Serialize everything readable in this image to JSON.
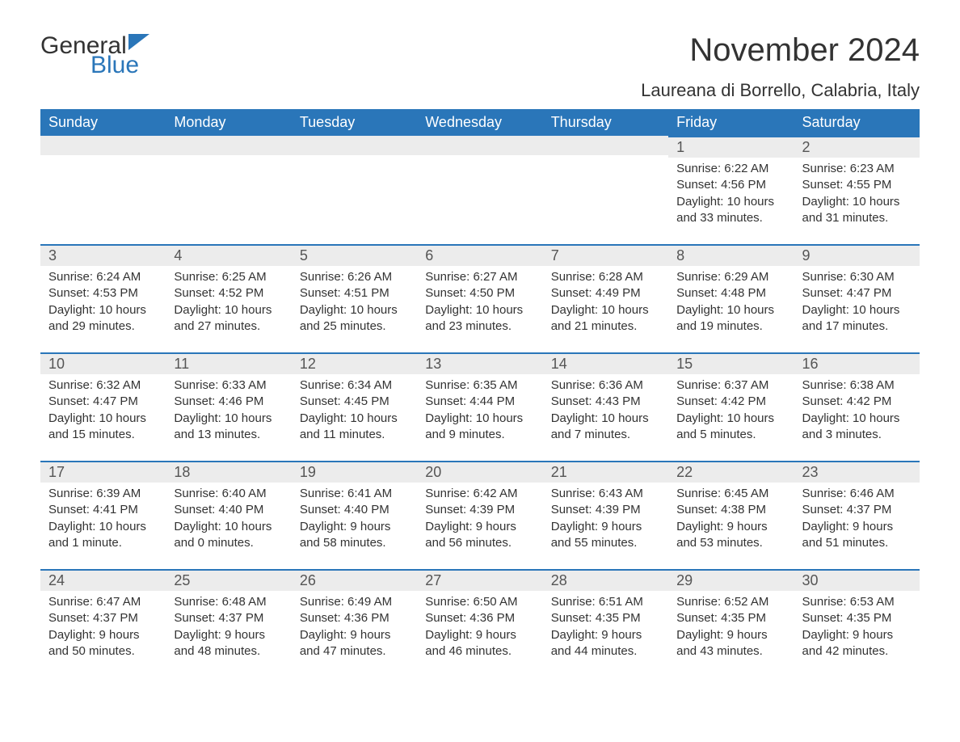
{
  "logo": {
    "text1": "General",
    "text2": "Blue"
  },
  "title": "November 2024",
  "location": "Laureana di Borrello, Calabria, Italy",
  "colors": {
    "header_bg": "#2a76b9",
    "header_text": "#ffffff",
    "daynum_bg": "#ececec",
    "daynum_border": "#2a76b9",
    "body_text": "#333333",
    "logo_blue": "#2a76b9"
  },
  "weekdays": [
    "Sunday",
    "Monday",
    "Tuesday",
    "Wednesday",
    "Thursday",
    "Friday",
    "Saturday"
  ],
  "weeks": [
    [
      null,
      null,
      null,
      null,
      null,
      {
        "n": "1",
        "sr": "Sunrise: 6:22 AM",
        "ss": "Sunset: 4:56 PM",
        "dl1": "Daylight: 10 hours",
        "dl2": "and 33 minutes."
      },
      {
        "n": "2",
        "sr": "Sunrise: 6:23 AM",
        "ss": "Sunset: 4:55 PM",
        "dl1": "Daylight: 10 hours",
        "dl2": "and 31 minutes."
      }
    ],
    [
      {
        "n": "3",
        "sr": "Sunrise: 6:24 AM",
        "ss": "Sunset: 4:53 PM",
        "dl1": "Daylight: 10 hours",
        "dl2": "and 29 minutes."
      },
      {
        "n": "4",
        "sr": "Sunrise: 6:25 AM",
        "ss": "Sunset: 4:52 PM",
        "dl1": "Daylight: 10 hours",
        "dl2": "and 27 minutes."
      },
      {
        "n": "5",
        "sr": "Sunrise: 6:26 AM",
        "ss": "Sunset: 4:51 PM",
        "dl1": "Daylight: 10 hours",
        "dl2": "and 25 minutes."
      },
      {
        "n": "6",
        "sr": "Sunrise: 6:27 AM",
        "ss": "Sunset: 4:50 PM",
        "dl1": "Daylight: 10 hours",
        "dl2": "and 23 minutes."
      },
      {
        "n": "7",
        "sr": "Sunrise: 6:28 AM",
        "ss": "Sunset: 4:49 PM",
        "dl1": "Daylight: 10 hours",
        "dl2": "and 21 minutes."
      },
      {
        "n": "8",
        "sr": "Sunrise: 6:29 AM",
        "ss": "Sunset: 4:48 PM",
        "dl1": "Daylight: 10 hours",
        "dl2": "and 19 minutes."
      },
      {
        "n": "9",
        "sr": "Sunrise: 6:30 AM",
        "ss": "Sunset: 4:47 PM",
        "dl1": "Daylight: 10 hours",
        "dl2": "and 17 minutes."
      }
    ],
    [
      {
        "n": "10",
        "sr": "Sunrise: 6:32 AM",
        "ss": "Sunset: 4:47 PM",
        "dl1": "Daylight: 10 hours",
        "dl2": "and 15 minutes."
      },
      {
        "n": "11",
        "sr": "Sunrise: 6:33 AM",
        "ss": "Sunset: 4:46 PM",
        "dl1": "Daylight: 10 hours",
        "dl2": "and 13 minutes."
      },
      {
        "n": "12",
        "sr": "Sunrise: 6:34 AM",
        "ss": "Sunset: 4:45 PM",
        "dl1": "Daylight: 10 hours",
        "dl2": "and 11 minutes."
      },
      {
        "n": "13",
        "sr": "Sunrise: 6:35 AM",
        "ss": "Sunset: 4:44 PM",
        "dl1": "Daylight: 10 hours",
        "dl2": "and 9 minutes."
      },
      {
        "n": "14",
        "sr": "Sunrise: 6:36 AM",
        "ss": "Sunset: 4:43 PM",
        "dl1": "Daylight: 10 hours",
        "dl2": "and 7 minutes."
      },
      {
        "n": "15",
        "sr": "Sunrise: 6:37 AM",
        "ss": "Sunset: 4:42 PM",
        "dl1": "Daylight: 10 hours",
        "dl2": "and 5 minutes."
      },
      {
        "n": "16",
        "sr": "Sunrise: 6:38 AM",
        "ss": "Sunset: 4:42 PM",
        "dl1": "Daylight: 10 hours",
        "dl2": "and 3 minutes."
      }
    ],
    [
      {
        "n": "17",
        "sr": "Sunrise: 6:39 AM",
        "ss": "Sunset: 4:41 PM",
        "dl1": "Daylight: 10 hours",
        "dl2": "and 1 minute."
      },
      {
        "n": "18",
        "sr": "Sunrise: 6:40 AM",
        "ss": "Sunset: 4:40 PM",
        "dl1": "Daylight: 10 hours",
        "dl2": "and 0 minutes."
      },
      {
        "n": "19",
        "sr": "Sunrise: 6:41 AM",
        "ss": "Sunset: 4:40 PM",
        "dl1": "Daylight: 9 hours",
        "dl2": "and 58 minutes."
      },
      {
        "n": "20",
        "sr": "Sunrise: 6:42 AM",
        "ss": "Sunset: 4:39 PM",
        "dl1": "Daylight: 9 hours",
        "dl2": "and 56 minutes."
      },
      {
        "n": "21",
        "sr": "Sunrise: 6:43 AM",
        "ss": "Sunset: 4:39 PM",
        "dl1": "Daylight: 9 hours",
        "dl2": "and 55 minutes."
      },
      {
        "n": "22",
        "sr": "Sunrise: 6:45 AM",
        "ss": "Sunset: 4:38 PM",
        "dl1": "Daylight: 9 hours",
        "dl2": "and 53 minutes."
      },
      {
        "n": "23",
        "sr": "Sunrise: 6:46 AM",
        "ss": "Sunset: 4:37 PM",
        "dl1": "Daylight: 9 hours",
        "dl2": "and 51 minutes."
      }
    ],
    [
      {
        "n": "24",
        "sr": "Sunrise: 6:47 AM",
        "ss": "Sunset: 4:37 PM",
        "dl1": "Daylight: 9 hours",
        "dl2": "and 50 minutes."
      },
      {
        "n": "25",
        "sr": "Sunrise: 6:48 AM",
        "ss": "Sunset: 4:37 PM",
        "dl1": "Daylight: 9 hours",
        "dl2": "and 48 minutes."
      },
      {
        "n": "26",
        "sr": "Sunrise: 6:49 AM",
        "ss": "Sunset: 4:36 PM",
        "dl1": "Daylight: 9 hours",
        "dl2": "and 47 minutes."
      },
      {
        "n": "27",
        "sr": "Sunrise: 6:50 AM",
        "ss": "Sunset: 4:36 PM",
        "dl1": "Daylight: 9 hours",
        "dl2": "and 46 minutes."
      },
      {
        "n": "28",
        "sr": "Sunrise: 6:51 AM",
        "ss": "Sunset: 4:35 PM",
        "dl1": "Daylight: 9 hours",
        "dl2": "and 44 minutes."
      },
      {
        "n": "29",
        "sr": "Sunrise: 6:52 AM",
        "ss": "Sunset: 4:35 PM",
        "dl1": "Daylight: 9 hours",
        "dl2": "and 43 minutes."
      },
      {
        "n": "30",
        "sr": "Sunrise: 6:53 AM",
        "ss": "Sunset: 4:35 PM",
        "dl1": "Daylight: 9 hours",
        "dl2": "and 42 minutes."
      }
    ]
  ]
}
